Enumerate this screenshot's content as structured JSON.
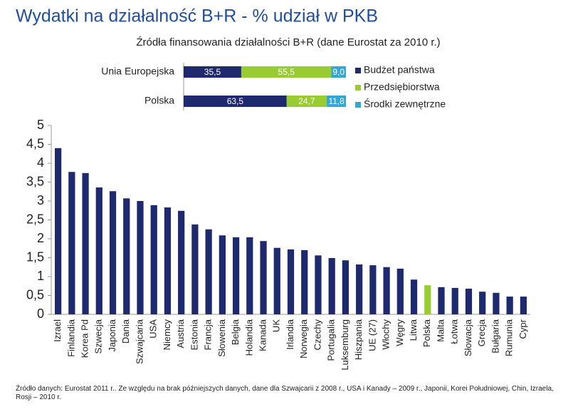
{
  "chart_data": [
    {
      "type": "bar",
      "title": "Wydatki na działalność B+R - % udział w PKB",
      "categories": [
        "Izrael",
        "Finlandia",
        "Korea Pd",
        "Szwecja",
        "Japonia",
        "Dania",
        "Szwajcaria",
        "USA",
        "Niemcy",
        "Austria",
        "Estonia",
        "Francja",
        "Słowenia",
        "Belgia",
        "Holandia",
        "Kanada",
        "UK",
        "Irlandia",
        "Norwegia",
        "Czechy",
        "Portugalia",
        "Luksemburg",
        "Hiszpania",
        "UE (27)",
        "Włochy",
        "Węgry",
        "Litwa",
        "Polska",
        "Malta",
        "Łotwa",
        "Słowacja",
        "Grecja",
        "Bułgaria",
        "Rumunia",
        "Cypr"
      ],
      "values": [
        4.4,
        3.77,
        3.74,
        3.36,
        3.26,
        3.07,
        3.0,
        2.89,
        2.83,
        2.74,
        2.38,
        2.25,
        2.09,
        2.04,
        2.04,
        1.94,
        1.76,
        1.72,
        1.7,
        1.56,
        1.49,
        1.43,
        1.32,
        1.3,
        1.25,
        1.21,
        0.92,
        0.77,
        0.72,
        0.7,
        0.68,
        0.6,
        0.57,
        0.47,
        0.47
      ],
      "colors": [
        "#1f2a6e",
        "#1f2a6e",
        "#1f2a6e",
        "#1f2a6e",
        "#1f2a6e",
        "#1f2a6e",
        "#1f2a6e",
        "#1f2a6e",
        "#1f2a6e",
        "#1f2a6e",
        "#1f2a6e",
        "#1f2a6e",
        "#1f2a6e",
        "#1f2a6e",
        "#1f2a6e",
        "#1f2a6e",
        "#1f2a6e",
        "#1f2a6e",
        "#1f2a6e",
        "#1f2a6e",
        "#1f2a6e",
        "#1f2a6e",
        "#1f2a6e",
        "#1f2a6e",
        "#1f2a6e",
        "#1f2a6e",
        "#1f2a6e",
        "#99cc33",
        "#1f2a6e",
        "#1f2a6e",
        "#1f2a6e",
        "#1f2a6e",
        "#1f2a6e",
        "#1f2a6e",
        "#1f2a6e"
      ],
      "ylim": [
        0,
        5
      ],
      "yticks": [
        0,
        {
          "value": 0.5,
          "label": "0,5"
        },
        1,
        {
          "value": 1.5,
          "label": "1,5"
        },
        2,
        {
          "value": 2.5,
          "label": "2,5"
        },
        3,
        {
          "value": 3.5,
          "label": "3,5"
        },
        4,
        {
          "value": 4.5,
          "label": "4,5"
        },
        5
      ],
      "grid": false,
      "note": "Źródło danych: Eurostat 2011 r.. Ze względu na brak późniejszych danych, dane dla Szwajcarii z 2008 r., USA i Kanady – 2009 r., Japonii, Korei Południowej, Chin, Izraela, Rosji – 2010 r."
    },
    {
      "type": "stacked_barh",
      "title": "Źródła finansowania działalności B+R (dane Eurostat za 2010 r.)",
      "categories": [
        "Unia Europejska",
        "Polska"
      ],
      "series": [
        {
          "name": "Budżet państwa",
          "color": "#1f2a6e",
          "values": [
            35.5,
            63.5
          ],
          "value_labels": [
            "35,5",
            "63,5"
          ]
        },
        {
          "name": "Przedsiębiorstwa",
          "color": "#99cc33",
          "values": [
            55.5,
            24.7
          ],
          "value_labels": [
            "55,5",
            "24,7"
          ]
        },
        {
          "name": "Środki zewnętrzne",
          "color": "#33a6d6",
          "values": [
            9.0,
            11.8
          ],
          "value_labels": [
            "9,0",
            "11,8"
          ]
        }
      ],
      "xlim": [
        0,
        100
      ],
      "legend": "right"
    }
  ]
}
